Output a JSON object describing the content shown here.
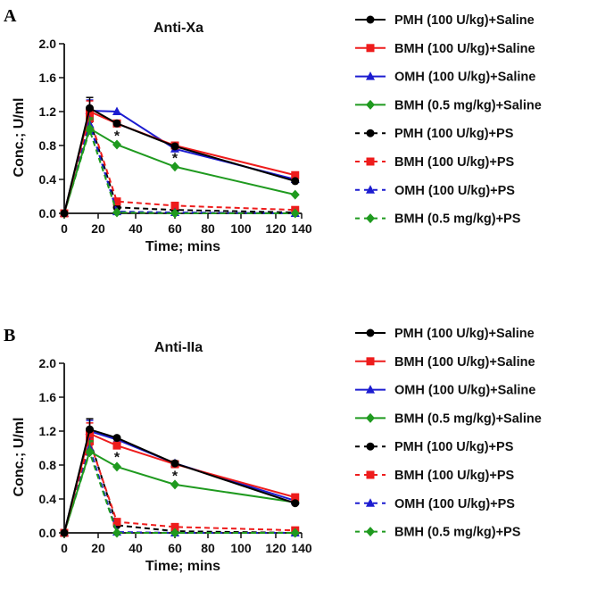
{
  "chart_data": [
    {
      "type": "line",
      "panel_label": "A",
      "title": "Anti-Xa",
      "xlabel": "Time; mins",
      "ylabel": "Conc.; U/ml",
      "xlim": [
        0,
        140
      ],
      "ylim": [
        0,
        2.0
      ],
      "xticks": [
        0,
        20,
        40,
        60,
        80,
        100,
        120,
        140
      ],
      "yticks": [
        "0.0",
        "0.4",
        "0.8",
        "1.2",
        "1.6",
        "2.0"
      ],
      "x": [
        0,
        15,
        30,
        60,
        135
      ],
      "annotations": [
        {
          "text": "*",
          "x": 30,
          "y": 0.92
        },
        {
          "text": "*",
          "x": 60,
          "y": 0.66
        }
      ],
      "series": [
        {
          "name": "PMH (100 U/kg)+Saline",
          "color": "#000000",
          "marker": "circle",
          "dash": false,
          "values": [
            0,
            1.24,
            1.06,
            0.79,
            0.38
          ]
        },
        {
          "name": "BMH (100 U/kg)+Saline",
          "color": "#ee1c1c",
          "marker": "square",
          "dash": false,
          "values": [
            0,
            1.2,
            1.06,
            0.8,
            0.45
          ]
        },
        {
          "name": "OMH (100 U/kg)+Saline",
          "color": "#1c1cd0",
          "marker": "triangle",
          "dash": false,
          "values": [
            0,
            1.21,
            1.2,
            0.76,
            0.4
          ]
        },
        {
          "name": "BMH (0.5 mg/kg)+Saline",
          "color": "#1f9a1f",
          "marker": "diamond",
          "dash": false,
          "values": [
            0,
            1.0,
            0.81,
            0.55,
            0.22
          ]
        },
        {
          "name": "PMH (100 U/kg)+PS",
          "color": "#000000",
          "marker": "circle",
          "dash": true,
          "values": [
            0,
            1.1,
            0.07,
            0.04,
            0.01
          ]
        },
        {
          "name": "BMH (100 U/kg)+PS",
          "color": "#ee1c1c",
          "marker": "square",
          "dash": true,
          "values": [
            0,
            1.12,
            0.14,
            0.09,
            0.04
          ]
        },
        {
          "name": "OMH (100 U/kg)+PS",
          "color": "#1c1cd0",
          "marker": "triangle",
          "dash": true,
          "values": [
            0,
            1.05,
            0.02,
            0.01,
            0.0
          ]
        },
        {
          "name": "BMH (0.5 mg/kg)+PS",
          "color": "#1f9a1f",
          "marker": "diamond",
          "dash": true,
          "values": [
            0,
            0.98,
            0.01,
            0.0,
            0.0
          ]
        }
      ]
    },
    {
      "type": "line",
      "panel_label": "B",
      "title": "Anti-IIa",
      "xlabel": "Time; mins",
      "ylabel": "Conc.; U/ml",
      "xlim": [
        0,
        140
      ],
      "ylim": [
        0,
        2.0
      ],
      "xticks": [
        0,
        20,
        40,
        60,
        80,
        100,
        120,
        140
      ],
      "yticks": [
        "0.0",
        "0.4",
        "0.8",
        "1.2",
        "1.6",
        "2.0"
      ],
      "x": [
        0,
        15,
        30,
        60,
        135
      ],
      "annotations": [
        {
          "text": "*",
          "x": 30,
          "y": 0.9
        },
        {
          "text": "*",
          "x": 60,
          "y": 0.68
        }
      ],
      "series": [
        {
          "name": "PMH (100 U/kg)+Saline",
          "color": "#000000",
          "marker": "circle",
          "dash": false,
          "values": [
            0,
            1.22,
            1.12,
            0.82,
            0.35
          ]
        },
        {
          "name": "BMH (100 U/kg)+Saline",
          "color": "#ee1c1c",
          "marker": "square",
          "dash": false,
          "values": [
            0,
            1.17,
            1.03,
            0.81,
            0.42
          ]
        },
        {
          "name": "OMH (100 U/kg)+Saline",
          "color": "#1c1cd0",
          "marker": "triangle",
          "dash": false,
          "values": [
            0,
            1.2,
            1.1,
            0.82,
            0.38
          ]
        },
        {
          "name": "BMH (0.5 mg/kg)+Saline",
          "color": "#1f9a1f",
          "marker": "diamond",
          "dash": false,
          "values": [
            0,
            0.96,
            0.78,
            0.57,
            0.36
          ]
        },
        {
          "name": "PMH (100 U/kg)+PS",
          "color": "#000000",
          "marker": "circle",
          "dash": true,
          "values": [
            0,
            1.1,
            0.09,
            0.02,
            0.0
          ]
        },
        {
          "name": "BMH (100 U/kg)+PS",
          "color": "#ee1c1c",
          "marker": "square",
          "dash": true,
          "values": [
            0,
            1.08,
            0.13,
            0.07,
            0.03
          ]
        },
        {
          "name": "OMH (100 U/kg)+PS",
          "color": "#1c1cd0",
          "marker": "triangle",
          "dash": true,
          "values": [
            0,
            1.0,
            0.01,
            0.0,
            0.0
          ]
        },
        {
          "name": "BMH (0.5 mg/kg)+PS",
          "color": "#1f9a1f",
          "marker": "diamond",
          "dash": true,
          "values": [
            0,
            0.95,
            0.0,
            0.0,
            0.0
          ]
        }
      ]
    }
  ]
}
